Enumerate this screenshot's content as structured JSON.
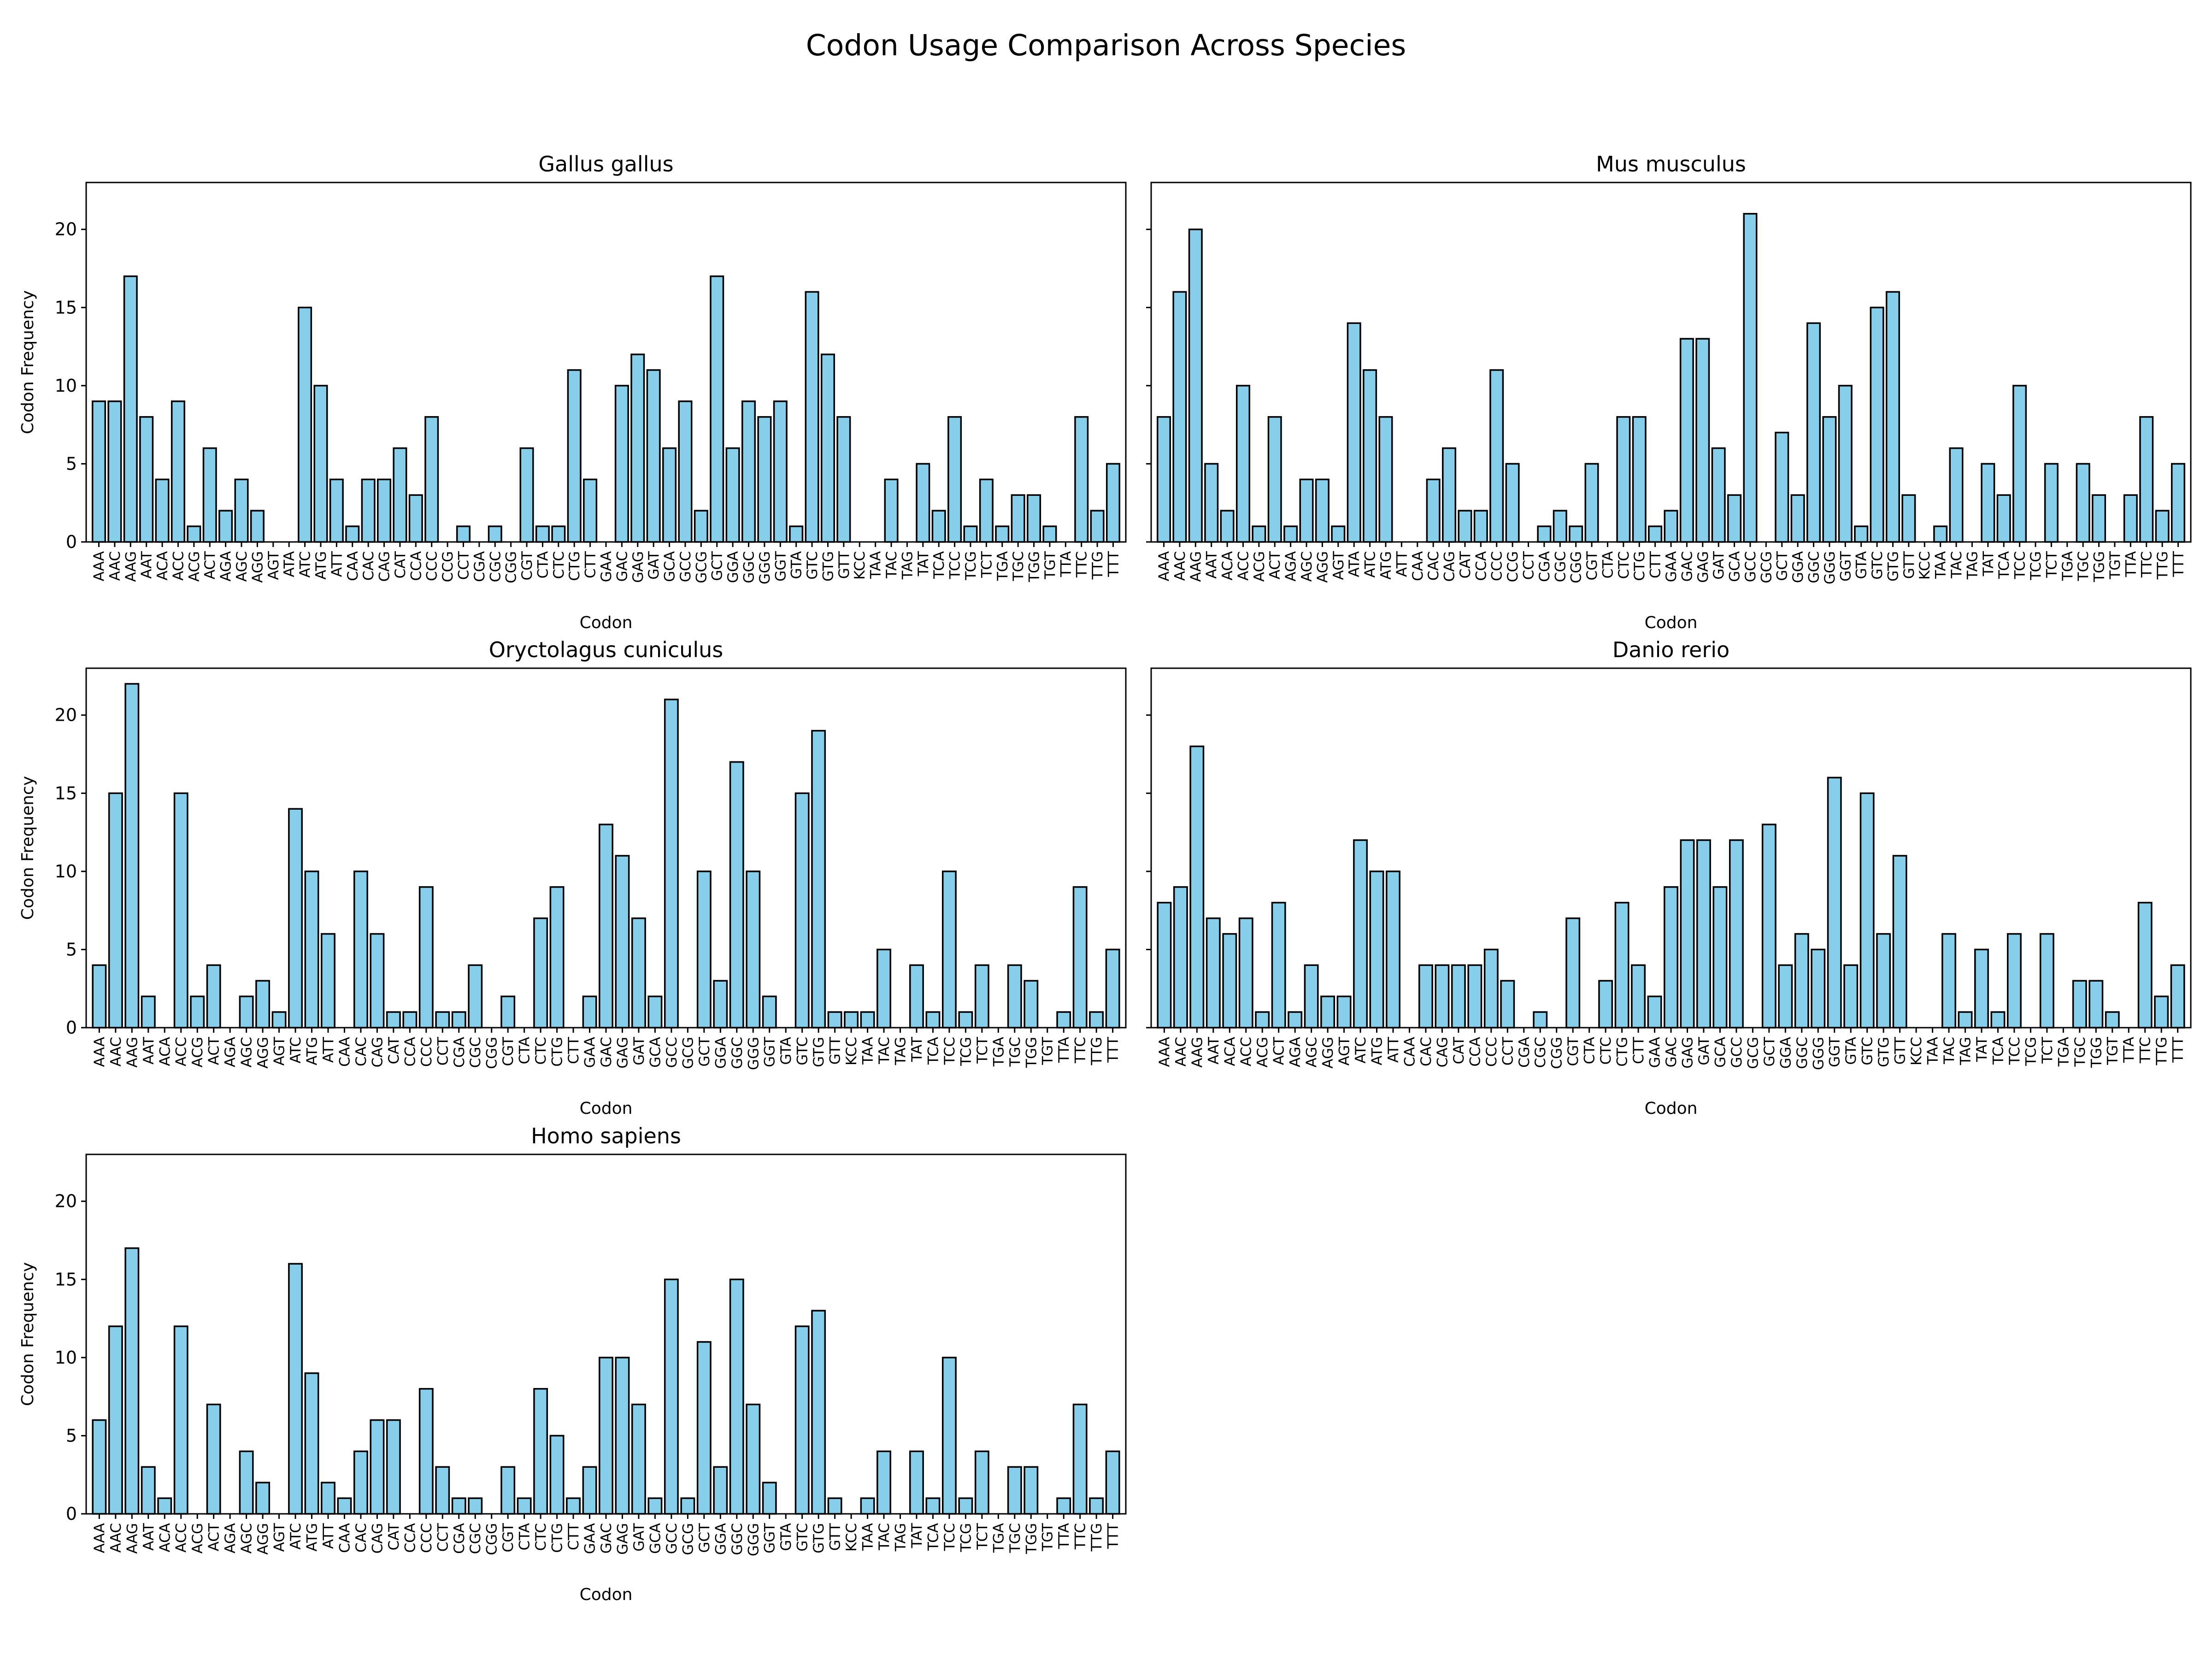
{
  "figure": {
    "suptitle": "Codon Usage Comparison Across Species",
    "bar_color": "#87ceeb",
    "edge_color": "#000000"
  },
  "chart_data": [
    {
      "type": "bar",
      "title": "Gallus gallus",
      "xlabel": "Codon",
      "ylabel": "Codon Frequency",
      "ylim": [
        0,
        23
      ],
      "yticks": [
        0,
        5,
        10,
        15,
        20
      ],
      "grid": false,
      "categories": [
        "AAA",
        "AAC",
        "AAG",
        "AAT",
        "ACA",
        "ACC",
        "ACG",
        "ACT",
        "AGA",
        "AGC",
        "AGG",
        "AGT",
        "ATA",
        "ATC",
        "ATG",
        "ATT",
        "CAA",
        "CAC",
        "CAG",
        "CAT",
        "CCA",
        "CCC",
        "CCG",
        "CCT",
        "CGA",
        "CGC",
        "CGG",
        "CGT",
        "CTA",
        "CTC",
        "CTG",
        "CTT",
        "GAA",
        "GAC",
        "GAG",
        "GAT",
        "GCA",
        "GCC",
        "GCG",
        "GCT",
        "GGA",
        "GGC",
        "GGG",
        "GGT",
        "GTA",
        "GTC",
        "GTG",
        "GTT",
        "KCC",
        "TAA",
        "TAC",
        "TAG",
        "TAT",
        "TCA",
        "TCC",
        "TCG",
        "TCT",
        "TGA",
        "TGC",
        "TGG",
        "TGT",
        "TTA",
        "TTC",
        "TTG",
        "TTT"
      ],
      "values": [
        9,
        9,
        17,
        8,
        4,
        9,
        1,
        6,
        2,
        4,
        2,
        0,
        0,
        15,
        10,
        4,
        1,
        4,
        4,
        6,
        3,
        8,
        0,
        1,
        0,
        1,
        0,
        6,
        1,
        1,
        11,
        4,
        0,
        10,
        12,
        11,
        6,
        9,
        2,
        17,
        6,
        9,
        8,
        9,
        1,
        16,
        12,
        8,
        0,
        0,
        4,
        0,
        5,
        2,
        8,
        1,
        4,
        1,
        3,
        3,
        1,
        0,
        8,
        2,
        5
      ]
    },
    {
      "type": "bar",
      "title": "Mus musculus",
      "xlabel": "Codon",
      "ylabel": "",
      "ylim": [
        0,
        23
      ],
      "yticks": [
        0,
        5,
        10,
        15,
        20
      ],
      "grid": false,
      "categories": [
        "AAA",
        "AAC",
        "AAG",
        "AAT",
        "ACA",
        "ACC",
        "ACG",
        "ACT",
        "AGA",
        "AGC",
        "AGG",
        "AGT",
        "ATA",
        "ATC",
        "ATG",
        "ATT",
        "CAA",
        "CAC",
        "CAG",
        "CAT",
        "CCA",
        "CCC",
        "CCG",
        "CCT",
        "CGA",
        "CGC",
        "CGG",
        "CGT",
        "CTA",
        "CTC",
        "CTG",
        "CTT",
        "GAA",
        "GAC",
        "GAG",
        "GAT",
        "GCA",
        "GCC",
        "GCG",
        "GCT",
        "GGA",
        "GGC",
        "GGG",
        "GGT",
        "GTA",
        "GTC",
        "GTG",
        "GTT",
        "KCC",
        "TAA",
        "TAC",
        "TAG",
        "TAT",
        "TCA",
        "TCC",
        "TCG",
        "TCT",
        "TGA",
        "TGC",
        "TGG",
        "TGT",
        "TTA",
        "TTC",
        "TTG",
        "TTT"
      ],
      "values": [
        8,
        16,
        20,
        5,
        2,
        10,
        1,
        8,
        1,
        4,
        4,
        1,
        14,
        11,
        8,
        0,
        0,
        4,
        6,
        2,
        2,
        11,
        5,
        0,
        1,
        2,
        1,
        5,
        0,
        8,
        8,
        1,
        2,
        13,
        13,
        6,
        3,
        21,
        0,
        7,
        3,
        14,
        8,
        10,
        1,
        15,
        16,
        3,
        0,
        1,
        6,
        0,
        5,
        3,
        10,
        0,
        5,
        0,
        5,
        3,
        0,
        3,
        8,
        2,
        5
      ]
    },
    {
      "type": "bar",
      "title": "Oryctolagus cuniculus",
      "xlabel": "Codon",
      "ylabel": "Codon Frequency",
      "ylim": [
        0,
        23
      ],
      "yticks": [
        0,
        5,
        10,
        15,
        20
      ],
      "grid": false,
      "categories": [
        "AAA",
        "AAC",
        "AAG",
        "AAT",
        "ACA",
        "ACC",
        "ACG",
        "ACT",
        "AGA",
        "AGC",
        "AGG",
        "AGT",
        "ATC",
        "ATG",
        "ATT",
        "CAA",
        "CAC",
        "CAG",
        "CAT",
        "CCA",
        "CCC",
        "CCT",
        "CGA",
        "CGC",
        "CGG",
        "CGT",
        "CTA",
        "CTC",
        "CTG",
        "CTT",
        "GAA",
        "GAC",
        "GAG",
        "GAT",
        "GCA",
        "GCC",
        "GCG",
        "GCT",
        "GGA",
        "GGC",
        "GGG",
        "GGT",
        "GTA",
        "GTC",
        "GTG",
        "GTT",
        "KCC",
        "TAA",
        "TAC",
        "TAG",
        "TAT",
        "TCA",
        "TCC",
        "TCG",
        "TCT",
        "TGA",
        "TGC",
        "TGG",
        "TGT",
        "TTA",
        "TTC",
        "TTG",
        "TTT"
      ],
      "values": [
        4,
        15,
        22,
        2,
        0,
        15,
        2,
        4,
        0,
        2,
        3,
        1,
        14,
        10,
        6,
        0,
        10,
        6,
        1,
        1,
        9,
        1,
        1,
        4,
        0,
        2,
        0,
        7,
        9,
        0,
        2,
        13,
        11,
        7,
        2,
        21,
        0,
        10,
        3,
        17,
        10,
        2,
        0,
        15,
        19,
        1,
        1,
        1,
        5,
        0,
        4,
        1,
        10,
        1,
        4,
        0,
        4,
        3,
        0,
        1,
        9,
        1,
        5
      ]
    },
    {
      "type": "bar",
      "title": "Danio rerio",
      "xlabel": "Codon",
      "ylabel": "",
      "ylim": [
        0,
        23
      ],
      "yticks": [
        0,
        5,
        10,
        15,
        20
      ],
      "grid": false,
      "categories": [
        "AAA",
        "AAC",
        "AAG",
        "AAT",
        "ACA",
        "ACC",
        "ACG",
        "ACT",
        "AGA",
        "AGC",
        "AGG",
        "AGT",
        "ATC",
        "ATG",
        "ATT",
        "CAA",
        "CAC",
        "CAG",
        "CAT",
        "CCA",
        "CCC",
        "CCT",
        "CGA",
        "CGC",
        "CGG",
        "CGT",
        "CTA",
        "CTC",
        "CTG",
        "CTT",
        "GAA",
        "GAC",
        "GAG",
        "GAT",
        "GCA",
        "GCC",
        "GCG",
        "GCT",
        "GGA",
        "GGC",
        "GGG",
        "GGT",
        "GTA",
        "GTC",
        "GTG",
        "GTT",
        "KCC",
        "TAA",
        "TAC",
        "TAG",
        "TAT",
        "TCA",
        "TCC",
        "TCG",
        "TCT",
        "TGA",
        "TGC",
        "TGG",
        "TGT",
        "TTA",
        "TTC",
        "TTG",
        "TTT"
      ],
      "values": [
        8,
        9,
        18,
        7,
        6,
        7,
        1,
        8,
        1,
        4,
        2,
        2,
        12,
        10,
        10,
        0,
        4,
        4,
        4,
        4,
        5,
        3,
        0,
        1,
        0,
        7,
        0,
        3,
        8,
        4,
        2,
        9,
        12,
        12,
        9,
        12,
        0,
        13,
        4,
        6,
        5,
        16,
        4,
        15,
        6,
        11,
        0,
        0,
        6,
        1,
        5,
        1,
        6,
        0,
        6,
        0,
        3,
        3,
        1,
        0,
        8,
        2,
        4
      ]
    },
    {
      "type": "bar",
      "title": "Homo sapiens",
      "xlabel": "Codon",
      "ylabel": "Codon Frequency",
      "ylim": [
        0,
        23
      ],
      "yticks": [
        0,
        5,
        10,
        15,
        20
      ],
      "grid": false,
      "categories": [
        "AAA",
        "AAC",
        "AAG",
        "AAT",
        "ACA",
        "ACC",
        "ACG",
        "ACT",
        "AGA",
        "AGC",
        "AGG",
        "AGT",
        "ATC",
        "ATG",
        "ATT",
        "CAA",
        "CAC",
        "CAG",
        "CAT",
        "CCA",
        "CCC",
        "CCT",
        "CGA",
        "CGC",
        "CGG",
        "CGT",
        "CTA",
        "CTC",
        "CTG",
        "CTT",
        "GAA",
        "GAC",
        "GAG",
        "GAT",
        "GCA",
        "GCC",
        "GCG",
        "GCT",
        "GGA",
        "GGC",
        "GGG",
        "GGT",
        "GTA",
        "GTC",
        "GTG",
        "GTT",
        "KCC",
        "TAA",
        "TAC",
        "TAG",
        "TAT",
        "TCA",
        "TCC",
        "TCG",
        "TCT",
        "TGA",
        "TGC",
        "TGG",
        "TGT",
        "TTA",
        "TTC",
        "TTG",
        "TTT"
      ],
      "values": [
        6,
        12,
        17,
        3,
        1,
        12,
        0,
        7,
        0,
        4,
        2,
        0,
        16,
        9,
        2,
        1,
        4,
        6,
        6,
        0,
        8,
        3,
        1,
        1,
        0,
        3,
        1,
        8,
        5,
        1,
        3,
        10,
        10,
        7,
        1,
        15,
        1,
        11,
        3,
        15,
        7,
        2,
        0,
        12,
        13,
        1,
        0,
        1,
        4,
        0,
        4,
        1,
        10,
        1,
        4,
        0,
        3,
        3,
        0,
        1,
        7,
        1,
        4
      ]
    }
  ]
}
